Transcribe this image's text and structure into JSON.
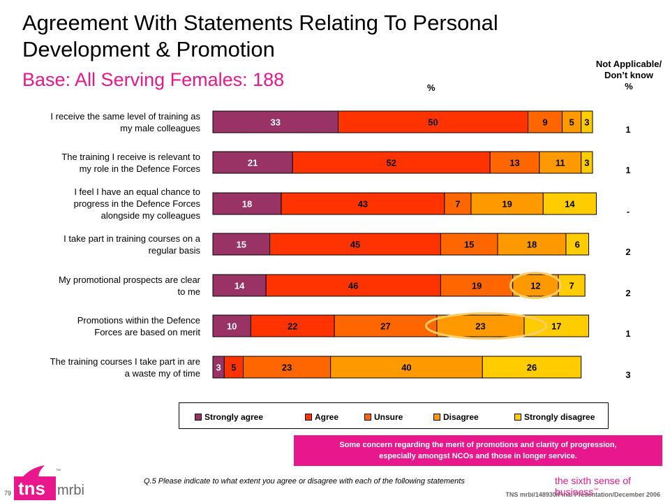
{
  "header": {
    "title": "Agreement With Statements Relating To Personal Development & Promotion",
    "subtitle": "Base:  All Serving Females:  188",
    "pct_label": "%",
    "na_header_lines": [
      "Not Applicable/",
      "Don’t know",
      "%"
    ]
  },
  "chart_data": {
    "type": "bar",
    "orientation": "horizontal",
    "stacked": true,
    "categories": [
      "I receive the same level of training as my male colleagues",
      "The training I receive is relevant to my role in the Defence Forces",
      "I feel I have an equal chance to progress in the Defence Forces alongside my colleagues",
      "I take part in training courses on a regular basis",
      "My promotional prospects are clear to me",
      "Promotions within the Defence Forces are based on merit",
      "The training courses I take part in are a waste my of time"
    ],
    "series": [
      {
        "name": "Strongly agree",
        "color": "#993366",
        "values": [
          33,
          21,
          18,
          15,
          14,
          10,
          3
        ]
      },
      {
        "name": "Agree",
        "color": "#ff3300",
        "values": [
          50,
          52,
          43,
          45,
          46,
          22,
          5
        ]
      },
      {
        "name": "Unsure",
        "color": "#ff6600",
        "values": [
          9,
          13,
          7,
          15,
          19,
          27,
          23
        ]
      },
      {
        "name": "Disagree",
        "color": "#ff9900",
        "values": [
          5,
          11,
          19,
          18,
          12,
          23,
          40
        ]
      },
      {
        "name": "Strongly disagree",
        "color": "#ffcc00",
        "values": [
          3,
          3,
          14,
          6,
          7,
          17,
          26
        ]
      }
    ],
    "not_applicable": [
      "1",
      "1",
      "-",
      "2",
      "2",
      "1",
      "3"
    ],
    "highlight_ellipses": [
      {
        "row": 4,
        "series": 3
      },
      {
        "row": 5,
        "series": 3
      }
    ],
    "highlight_color": "#ffcc66"
  },
  "rows": [
    {
      "label_lines": [
        "I receive the same level of training as",
        "my male colleagues"
      ]
    },
    {
      "label_lines": [
        "The training I receive is relevant to",
        "my role in the Defence Forces"
      ]
    },
    {
      "label_lines": [
        "I feel I have an equal chance to",
        "progress in the Defence Forces",
        "alongside my colleagues"
      ]
    },
    {
      "label_lines": [
        "I take part in training courses on a",
        "regular basis"
      ]
    },
    {
      "label_lines": [
        "My promotional prospects are clear",
        "to me"
      ]
    },
    {
      "label_lines": [
        "Promotions within the Defence",
        "Forces are based on merit"
      ]
    },
    {
      "label_lines": [
        "The training courses I take part in are",
        "a waste my of time"
      ]
    }
  ],
  "callout": {
    "line1": "Some concern regarding the merit of promotions and clarity of progression,",
    "line2": "especially amongst NCOs and those in longer service."
  },
  "question": "Q.5  Please indicate to what extent you agree or disagree with each of the following statements",
  "footer": {
    "reference": "TNS mrbi/148930/Final Presentation/December 2006",
    "page_number": "79",
    "tagline": "the sixth sense of business",
    "tagline_mark": "™",
    "logo_text": "tns",
    "logo_sub": "mrbi",
    "logo_mark": "™",
    "brand_color": "#e8178c"
  }
}
